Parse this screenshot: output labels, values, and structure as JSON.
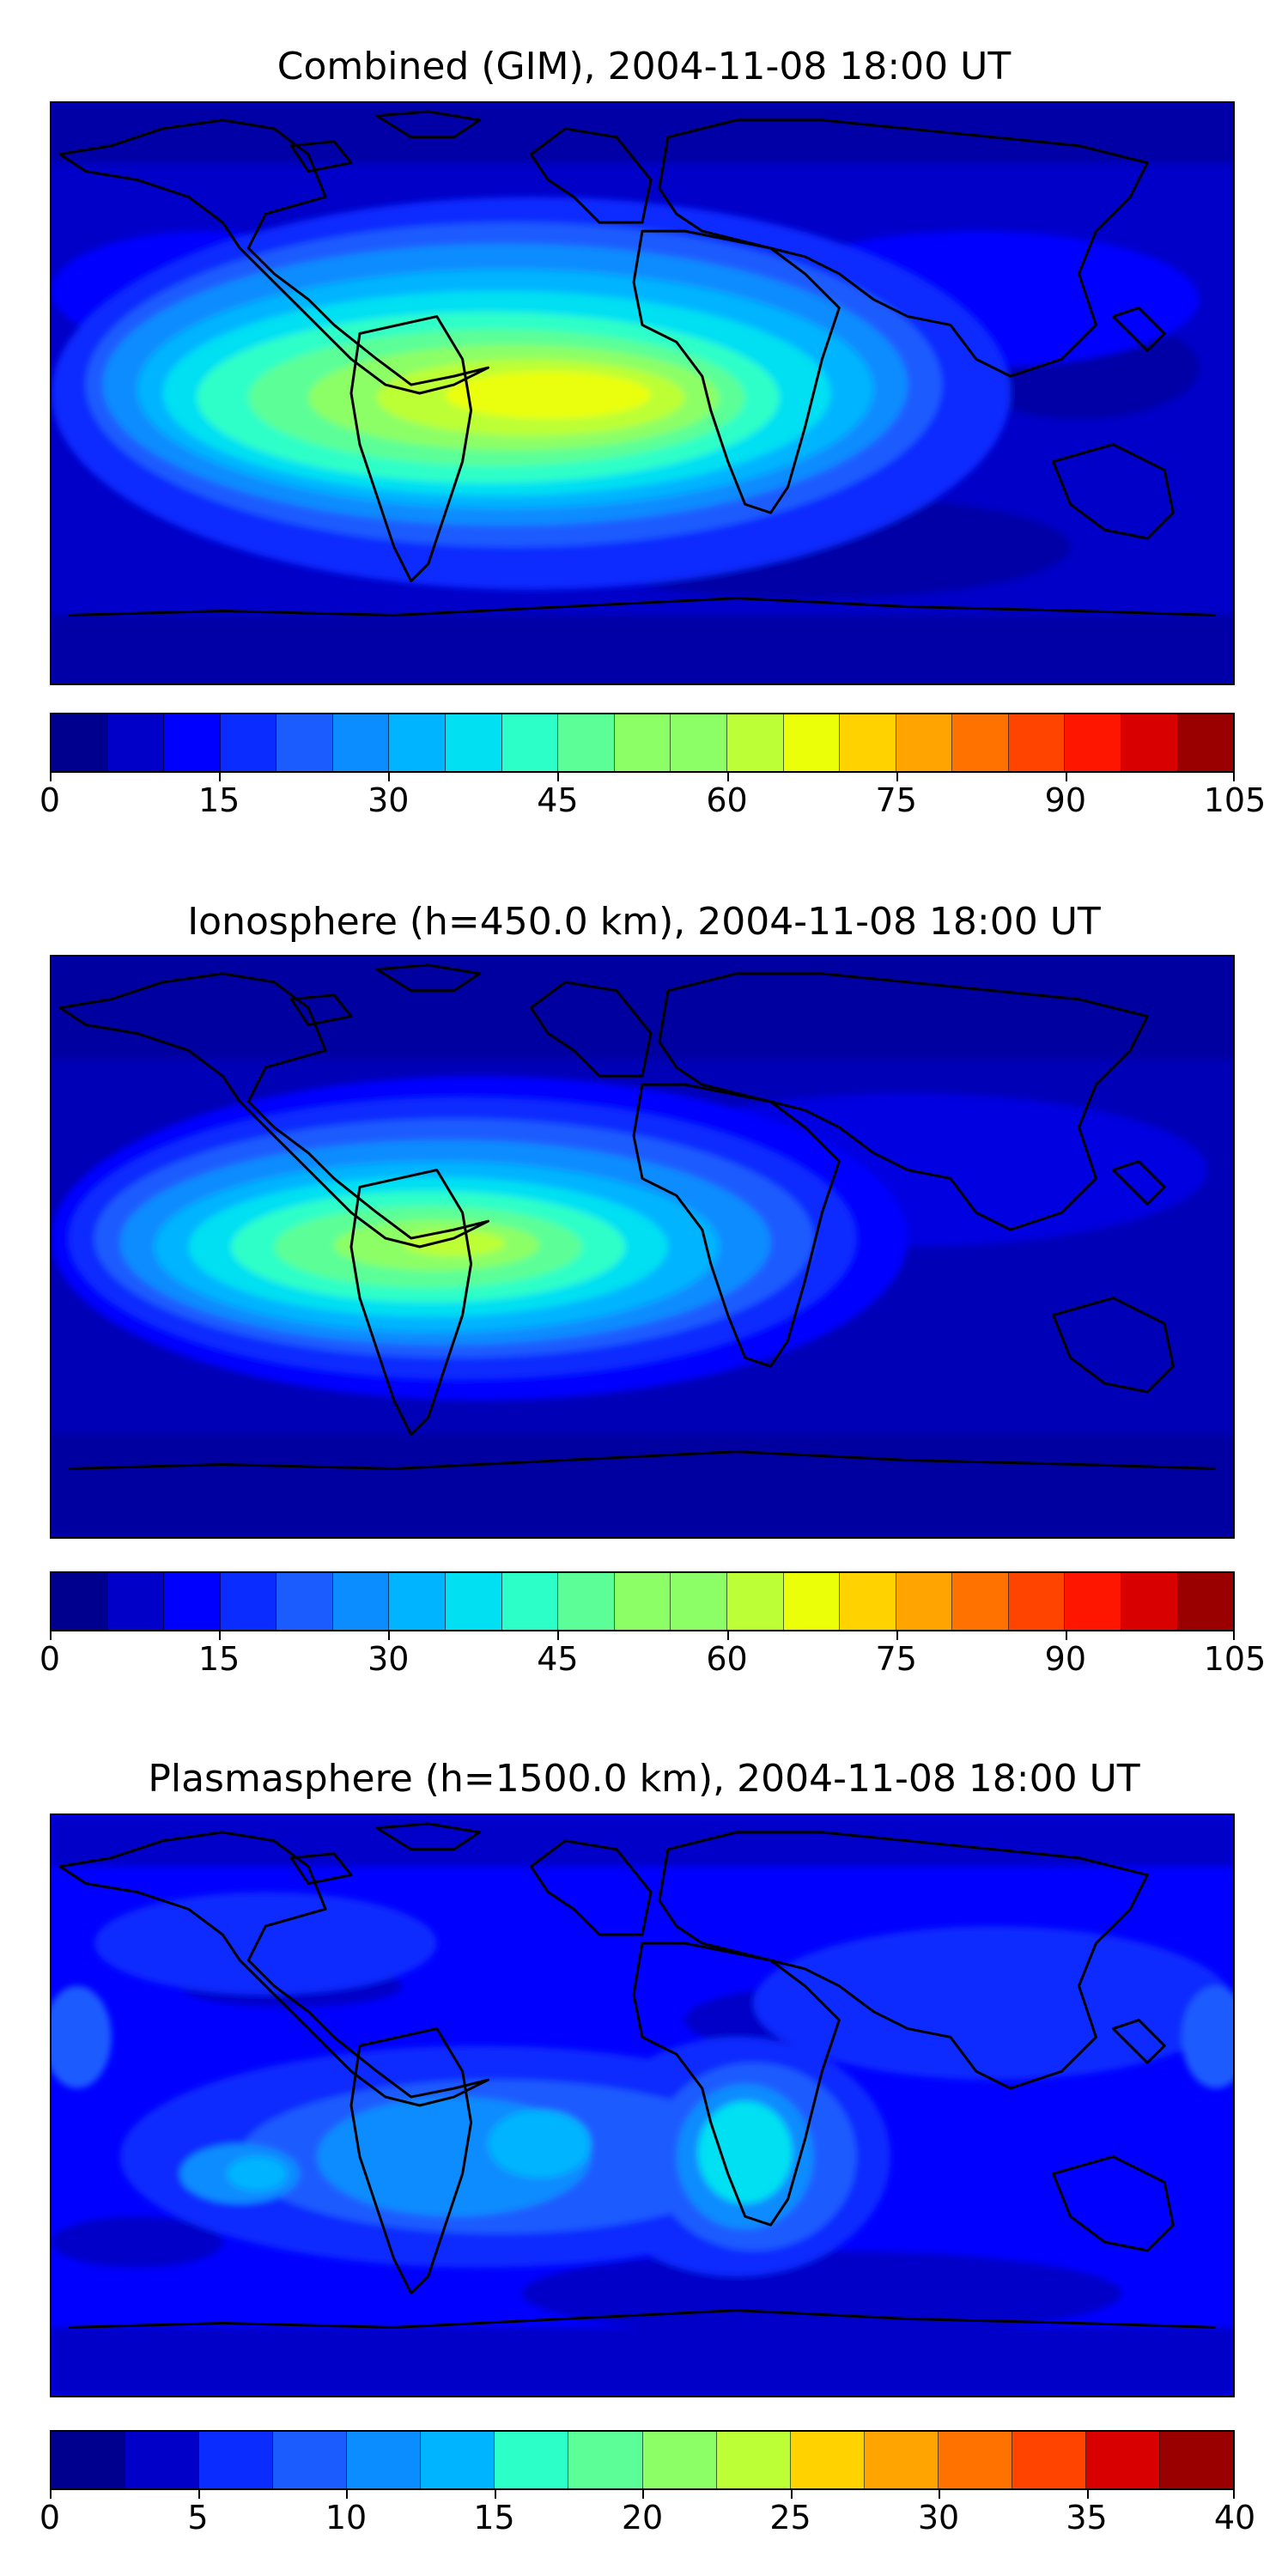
{
  "panels": [
    {
      "title": "Combined (GIM), 2004-11-08 18:00 UT",
      "colorbar": {
        "min": 0,
        "max": 105,
        "ticks": [
          "0",
          "15",
          "30",
          "45",
          "60",
          "75",
          "90",
          "105"
        ]
      }
    },
    {
      "title": "Ionosphere  (h=450.0 km), 2004-11-08 18:00 UT",
      "colorbar": {
        "min": 0,
        "max": 105,
        "ticks": [
          "0",
          "15",
          "30",
          "45",
          "60",
          "75",
          "90",
          "105"
        ]
      }
    },
    {
      "title": "Plasmasphere (h=1500.0 km), 2004-11-08 18:00 UT",
      "colorbar": {
        "min": 0,
        "max": 40,
        "ticks": [
          "0",
          "5",
          "10",
          "15",
          "20",
          "25",
          "30",
          "35",
          "40"
        ]
      }
    }
  ],
  "colormap": "jet",
  "colors": {
    "jet": [
      "#00008f",
      "#0000c8",
      "#0000ff",
      "#0a2cff",
      "#1a5cff",
      "#0b8cff",
      "#00b4ff",
      "#00e0f2",
      "#2dffc8",
      "#5cff97",
      "#8cff66",
      "#bcff36",
      "#eaff08",
      "#ffd200",
      "#ffa400",
      "#ff7200",
      "#ff4400",
      "#ff1600",
      "#d80000",
      "#9a0000"
    ],
    "coastline": "#000000"
  },
  "chart_data": [
    {
      "type": "heatmap",
      "title": "Combined (GIM), 2004-11-08 18:00 UT",
      "map_extent": {
        "lon": [
          -180,
          180
        ],
        "lat": [
          -90,
          90
        ]
      },
      "scale": {
        "min": 0,
        "max": 105,
        "levels": 21,
        "step": 5
      },
      "features": [
        {
          "name": "equatorial crest over South America and South Atlantic",
          "peak": 65
        },
        {
          "name": "moderate band eastern Pacific / Atlantic",
          "level": 35
        },
        {
          "name": "background high latitudes",
          "level": 10
        }
      ]
    },
    {
      "type": "heatmap",
      "title": "Ionosphere  (h=450.0 km), 2004-11-08 18:00 UT",
      "map_extent": {
        "lon": [
          -180,
          180
        ],
        "lat": [
          -90,
          90
        ]
      },
      "scale": {
        "min": 0,
        "max": 105,
        "levels": 21,
        "step": 5
      },
      "features": [
        {
          "name": "equatorial crest over South America and Atlantic",
          "peak": 60
        },
        {
          "name": "background high latitudes",
          "level": 5
        }
      ]
    },
    {
      "type": "heatmap",
      "title": "Plasmasphere (h=1500.0 km), 2004-11-08 18:00 UT",
      "map_extent": {
        "lon": [
          -180,
          180
        ],
        "lat": [
          -90,
          90
        ]
      },
      "scale": {
        "min": 0,
        "max": 40,
        "levels": 18,
        "step": 2.5
      },
      "features": [
        {
          "name": "southern Africa maximum",
          "peak": 15
        },
        {
          "name": "South Atlantic maximum",
          "peak": 15
        },
        {
          "name": "background",
          "level": 7.5
        }
      ]
    }
  ]
}
